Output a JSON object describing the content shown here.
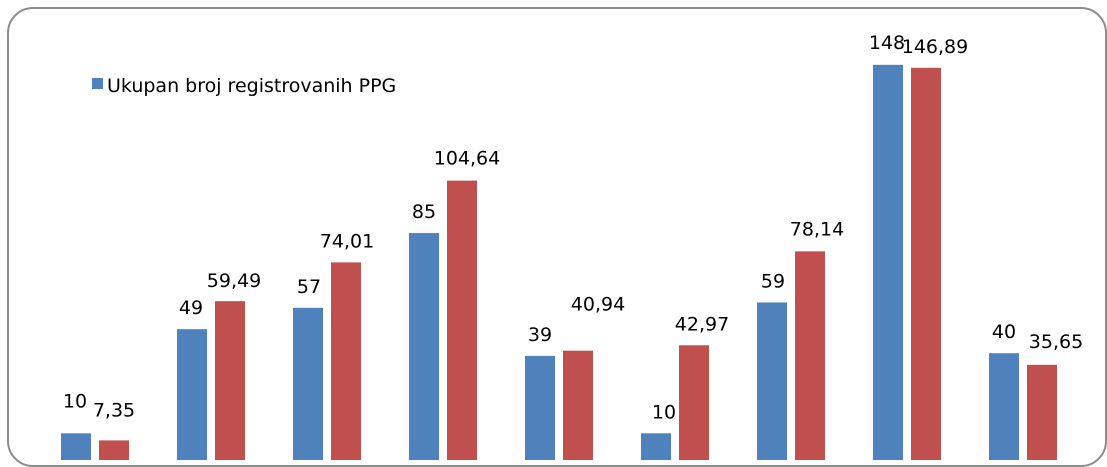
{
  "chart_data": {
    "type": "bar",
    "categories": [
      "",
      "",
      "",
      "",
      "",
      "",
      "",
      "",
      ""
    ],
    "series": [
      {
        "name": "Ukupan broj registrovanih PPG",
        "color": "#4f81bd",
        "values": [
          10,
          49,
          57,
          85,
          39,
          10,
          59,
          148,
          40
        ],
        "labels": [
          "10",
          "49",
          "57",
          "85",
          "39",
          "10",
          "59",
          "148",
          "40"
        ]
      },
      {
        "color": "#c0504d",
        "values": [
          7.35,
          59.49,
          74.01,
          104.64,
          40.94,
          42.97,
          78.14,
          146.89,
          35.65
        ],
        "labels": [
          "7,35",
          "59,49",
          "74,01",
          "104,64",
          "40,94",
          "42,97",
          "78,14",
          "146,89",
          "35,65"
        ]
      }
    ],
    "legend": {
      "position": "top-left"
    },
    "grid": false
  }
}
